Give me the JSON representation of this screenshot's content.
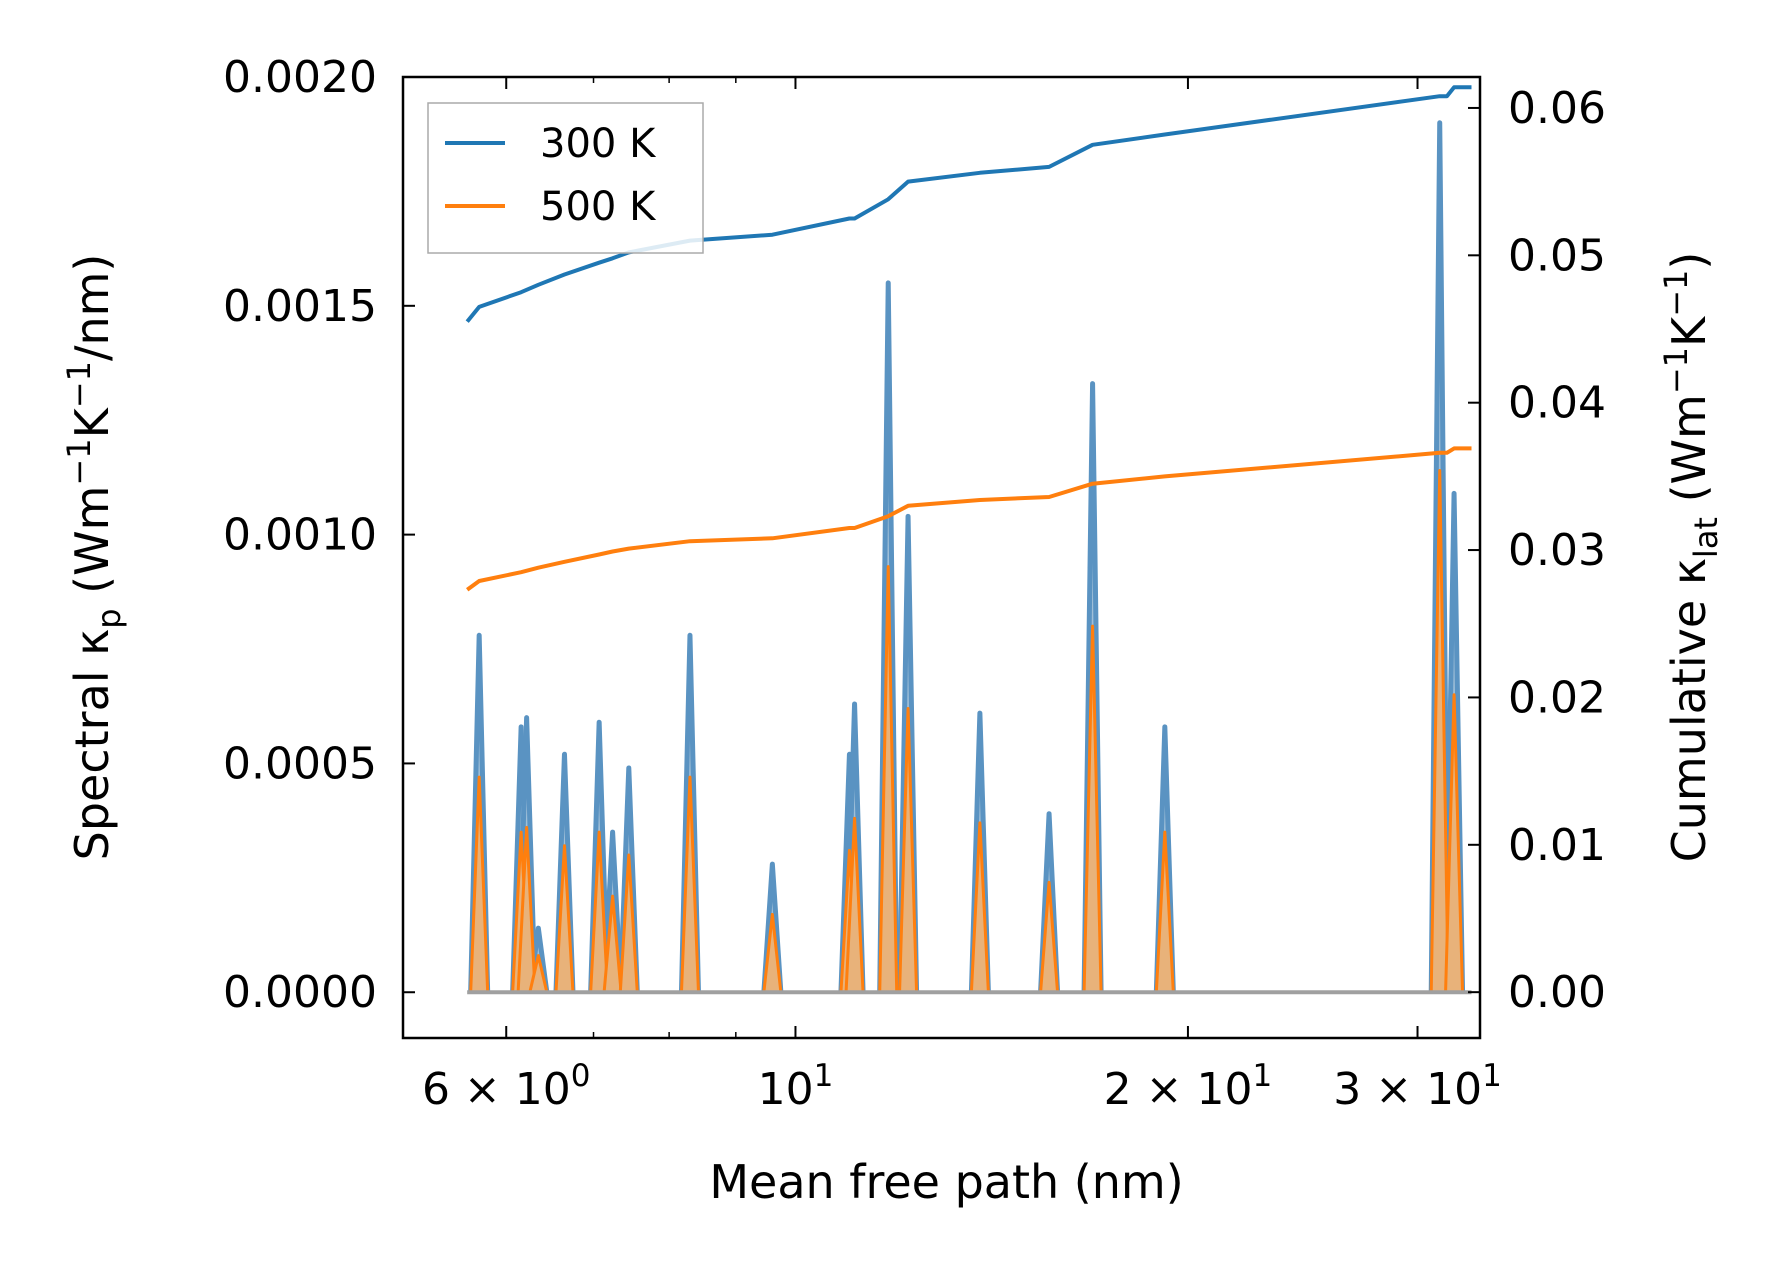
{
  "chart_data": {
    "type": "line",
    "xscale": "log",
    "xlim": [
      5.0,
      33.5
    ],
    "ylim_left": [
      -0.0001,
      0.002
    ],
    "ylim_right": [
      -0.00311,
      0.0621
    ],
    "xlabel": "Mean free path (nm)",
    "ylabel_left": {
      "main": "Spectral κ",
      "sub": "p",
      "unit_open": " (Wm",
      "sup1": "−1",
      "mid": "K",
      "sup2": "−1",
      "tail": "/nm)"
    },
    "ylabel_right": {
      "main": "Cumulative κ",
      "sub": "lat",
      "unit_open": " (Wm",
      "sup1": "−1",
      "mid": "K",
      "sup2": "−1",
      "tail": ")"
    },
    "xticks": [
      {
        "value": 6,
        "mant": "6 × 10",
        "exp": "0"
      },
      {
        "value": 10,
        "mant": "10",
        "exp": "1"
      },
      {
        "value": 20,
        "mant": "2 × 10",
        "exp": "1"
      },
      {
        "value": 30,
        "mant": "3 × 10",
        "exp": "1"
      }
    ],
    "yticks_left": [
      0,
      0.0005,
      0.001,
      0.0015,
      0.002
    ],
    "yticks_left_labels": [
      "0.0000",
      "0.0005",
      "0.0010",
      "0.0015",
      "0.0020"
    ],
    "yticks_right": [
      0,
      0.01,
      0.02,
      0.03,
      0.04,
      0.05,
      0.06
    ],
    "yticks_right_labels": [
      "0.00",
      "0.01",
      "0.02",
      "0.03",
      "0.04",
      "0.05",
      "0.06"
    ],
    "legend": {
      "position": "top-left",
      "entries": [
        "300 K",
        "500 K"
      ]
    },
    "colors": {
      "300K": "#1f77b4",
      "500K": "#ff7f0e",
      "fill300": "#9fbfd8",
      "fill500": "#e8b27a",
      "base": "#a0a0a0"
    },
    "spectral_peaks_300K": [
      [
        5.72,
        0.00078
      ],
      [
        6.16,
        0.00058
      ],
      [
        6.22,
        0.0006
      ],
      [
        6.35,
        0.00014
      ],
      [
        6.65,
        0.00052
      ],
      [
        7.07,
        0.00059
      ],
      [
        7.24,
        0.00035
      ],
      [
        7.45,
        0.00049
      ],
      [
        8.3,
        0.00078
      ],
      [
        9.6,
        0.00028
      ],
      [
        11.0,
        0.00052
      ],
      [
        11.1,
        0.00063
      ],
      [
        11.78,
        0.00155
      ],
      [
        12.2,
        0.00104
      ],
      [
        13.85,
        0.00061
      ],
      [
        15.65,
        0.00039
      ],
      [
        16.9,
        0.00133
      ],
      [
        19.2,
        0.00058
      ],
      [
        31.2,
        0.0019
      ],
      [
        32.0,
        0.00109
      ]
    ],
    "spectral_peaks_500K": [
      [
        5.72,
        0.00047
      ],
      [
        6.16,
        0.00035
      ],
      [
        6.22,
        0.00036
      ],
      [
        6.35,
        8e-05
      ],
      [
        6.65,
        0.00032
      ],
      [
        7.07,
        0.00035
      ],
      [
        7.24,
        0.00021
      ],
      [
        7.45,
        0.0003
      ],
      [
        8.3,
        0.00047
      ],
      [
        9.6,
        0.00017
      ],
      [
        11.0,
        0.00031
      ],
      [
        11.1,
        0.00038
      ],
      [
        11.78,
        0.00093
      ],
      [
        12.2,
        0.00062
      ],
      [
        13.85,
        0.00037
      ],
      [
        15.65,
        0.00024
      ],
      [
        16.9,
        0.0008
      ],
      [
        19.2,
        0.00035
      ],
      [
        31.2,
        0.00114
      ],
      [
        32.0,
        0.00065
      ]
    ],
    "cumulative_300K": [
      [
        5.6,
        0.0455
      ],
      [
        5.72,
        0.0465
      ],
      [
        6.16,
        0.0475
      ],
      [
        6.35,
        0.048
      ],
      [
        6.65,
        0.0487
      ],
      [
        7.07,
        0.0495
      ],
      [
        7.24,
        0.0498
      ],
      [
        7.45,
        0.0502
      ],
      [
        8.3,
        0.051
      ],
      [
        9.6,
        0.0514
      ],
      [
        11.0,
        0.0525
      ],
      [
        11.1,
        0.0525
      ],
      [
        11.78,
        0.0538
      ],
      [
        12.2,
        0.055
      ],
      [
        13.85,
        0.0556
      ],
      [
        15.65,
        0.056
      ],
      [
        16.9,
        0.0575
      ],
      [
        19.2,
        0.0582
      ],
      [
        31.2,
        0.0608
      ],
      [
        31.6,
        0.0608
      ],
      [
        32.0,
        0.0614
      ],
      [
        33.0,
        0.0614
      ]
    ],
    "cumulative_500K": [
      [
        5.6,
        0.0273
      ],
      [
        5.72,
        0.0279
      ],
      [
        6.16,
        0.0285
      ],
      [
        6.35,
        0.0288
      ],
      [
        6.65,
        0.0292
      ],
      [
        7.07,
        0.0297
      ],
      [
        7.24,
        0.0299
      ],
      [
        7.45,
        0.0301
      ],
      [
        8.3,
        0.0306
      ],
      [
        9.6,
        0.0308
      ],
      [
        11.0,
        0.0315
      ],
      [
        11.1,
        0.0315
      ],
      [
        11.78,
        0.0323
      ],
      [
        12.2,
        0.033
      ],
      [
        13.85,
        0.0334
      ],
      [
        15.65,
        0.0336
      ],
      [
        16.9,
        0.0345
      ],
      [
        19.2,
        0.035
      ],
      [
        31.2,
        0.0366
      ],
      [
        31.6,
        0.0366
      ],
      [
        32.0,
        0.0369
      ],
      [
        33.0,
        0.0369
      ]
    ]
  }
}
